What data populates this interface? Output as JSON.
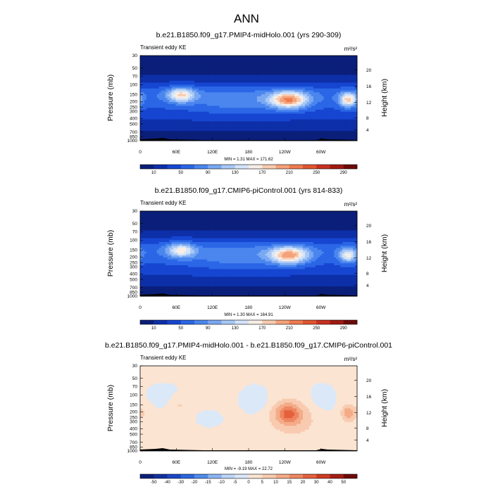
{
  "page": {
    "title": "ANN",
    "background": "#ffffff"
  },
  "panels": [
    {
      "title": "b.e21.B1850.f09_g17.PMIP4-midHolo.001 (yrs 290-309)",
      "left_label": "Transient eddy KE",
      "units": "m²/s²",
      "ylabel": "Pressure (mb)",
      "ylabel_right": "Height (km)",
      "stats": "MIN =   1.31  MAX = 171.62"
    },
    {
      "title": "b.e21.B1850.f09_g17.CMIP6-piControl.001 (yrs 814-833)",
      "left_label": "Transient eddy KE",
      "units": "m²/s²",
      "ylabel": "Pressure (mb)",
      "ylabel_right": "Height (km)",
      "stats": "MIN =   1.30  MAX = 164.91"
    },
    {
      "title": "b.e21.B1850.f09_g17.PMIP4-midHolo.001 - b.e21.B1850.f09_g17.CMIP6-piControl.001",
      "left_label": "Transient eddy KE",
      "units": "m²/s²",
      "ylabel": "Pressure (mb)",
      "ylabel_right": "Height (km)",
      "stats": "MIN =  -9.19  MAX =  22.72"
    }
  ],
  "chart_data": [
    {
      "type": "heatmap",
      "title": "b.e21.B1850.f09_g17.PMIP4-midHolo.001 (yrs 290-309)",
      "variable": "Transient eddy KE",
      "units": "m2/s2",
      "x_ticks": [
        "0",
        "60E",
        "120E",
        "180",
        "120W",
        "60W"
      ],
      "y_ticks": [
        "30",
        "50",
        "70",
        "100",
        "150",
        "200",
        "250",
        "300",
        "400",
        "500",
        "700",
        "850",
        "1000"
      ],
      "y_right_ticks": [
        "20",
        "16",
        "12",
        "8",
        "4"
      ],
      "ylim": [
        1000,
        30
      ],
      "y_scale": "log",
      "ylabel": "Pressure (mb)",
      "ylabel_right": "Height (km)",
      "colorbar_labels": [
        "10",
        "50",
        "90",
        "130",
        "170",
        "210",
        "250",
        "290"
      ],
      "min": 1.31,
      "max": 171.62,
      "maxima": [
        {
          "lon": 70,
          "p": 150,
          "value": 160
        },
        {
          "lon": 245,
          "p": 200,
          "value": 171.62
        },
        {
          "lon": 340,
          "p": 200,
          "value": 140
        }
      ]
    },
    {
      "type": "heatmap",
      "title": "b.e21.B1850.f09_g17.CMIP6-piControl.001 (yrs 814-833)",
      "variable": "Transient eddy KE",
      "units": "m2/s2",
      "x_ticks": [
        "0",
        "60E",
        "120E",
        "180",
        "120W",
        "60W"
      ],
      "y_ticks": [
        "30",
        "50",
        "70",
        "100",
        "150",
        "200",
        "250",
        "300",
        "400",
        "500",
        "700",
        "850",
        "1000"
      ],
      "y_right_ticks": [
        "20",
        "16",
        "12",
        "8",
        "4"
      ],
      "ylim": [
        1000,
        30
      ],
      "y_scale": "log",
      "ylabel": "Pressure (mb)",
      "ylabel_right": "Height (km)",
      "colorbar_labels": [
        "10",
        "50",
        "90",
        "130",
        "170",
        "210",
        "250",
        "290"
      ],
      "min": 1.3,
      "max": 164.91,
      "maxima": [
        {
          "lon": 70,
          "p": 150,
          "value": 150
        },
        {
          "lon": 245,
          "p": 200,
          "value": 164.91
        },
        {
          "lon": 340,
          "p": 200,
          "value": 120
        }
      ]
    },
    {
      "type": "heatmap",
      "title": "b.e21.B1850.f09_g17.PMIP4-midHolo.001 - b.e21.B1850.f09_g17.CMIP6-piControl.001",
      "variable": "Transient eddy KE",
      "units": "m2/s2",
      "x_ticks": [
        "0",
        "60E",
        "120E",
        "180",
        "120W",
        "60W"
      ],
      "y_ticks": [
        "30",
        "50",
        "70",
        "100",
        "150",
        "200",
        "250",
        "300",
        "400",
        "500",
        "700",
        "850",
        "1000"
      ],
      "y_right_ticks": [
        "20",
        "16",
        "12",
        "8",
        "4"
      ],
      "ylim": [
        1000,
        30
      ],
      "y_scale": "log",
      "ylabel": "Pressure (mb)",
      "ylabel_right": "Height (km)",
      "colorbar_labels": [
        "-50",
        "-40",
        "-30",
        "-20",
        "-15",
        "-10",
        "-5",
        "0",
        "5",
        "10",
        "15",
        "20",
        "30",
        "40",
        "50"
      ],
      "min": -9.19,
      "max": 22.72,
      "maxima": [
        {
          "lon": 245,
          "p": 200,
          "value": 22.72
        },
        {
          "lon": 345,
          "p": 200,
          "value": 18
        },
        {
          "lon": 65,
          "p": 150,
          "value": 6
        },
        {
          "lon": 110,
          "p": 300,
          "value": -9.19
        }
      ]
    }
  ],
  "colors": {
    "abs_scale": [
      "#0a1f7a",
      "#0d2fa8",
      "#1646d1",
      "#2a66e6",
      "#4a86ee",
      "#7aa8f2",
      "#a8c8f6",
      "#d4e4fa",
      "#f8eee6",
      "#f7cbb0",
      "#f4a27a",
      "#ee7a4f",
      "#e05530",
      "#c73020",
      "#a01a12",
      "#6e0a08"
    ],
    "diff_scale": [
      "#0b1f78",
      "#12309e",
      "#1a47c6",
      "#2b66dd",
      "#4f8bea",
      "#8ab4f2",
      "#bdd5f7",
      "#dbe8f8",
      "#fbe4d2",
      "#f8cbb0",
      "#f4ab88",
      "#ee8660",
      "#e5603d",
      "#cf3a22",
      "#a41e14",
      "#6e0a08"
    ]
  }
}
